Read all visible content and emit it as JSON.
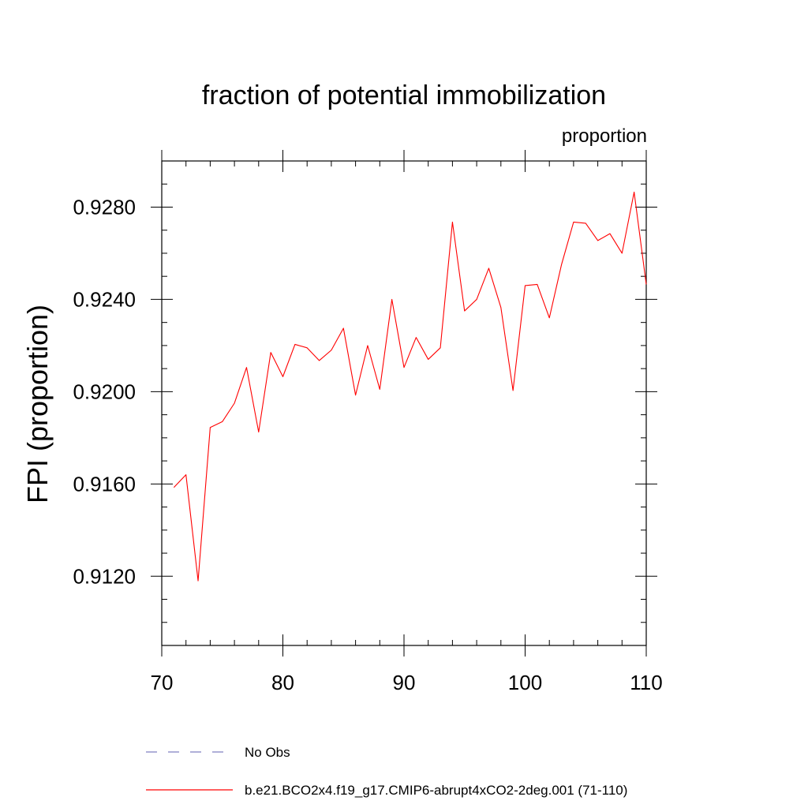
{
  "chart_data": {
    "type": "line",
    "title": "fraction of potential immobilization",
    "units_label": "proportion",
    "ylabel": "FPI  (proportion)",
    "xlabel": "",
    "xlim": [
      70,
      110
    ],
    "ylim": [
      0.909,
      0.93
    ],
    "x_ticks": [
      70,
      80,
      90,
      100,
      110
    ],
    "x_tick_labels": [
      "70",
      "80",
      "90",
      "100",
      "110"
    ],
    "y_ticks": [
      0.912,
      0.916,
      0.92,
      0.924,
      0.928
    ],
    "y_tick_labels": [
      "0.9120",
      "0.9160",
      "0.9200",
      "0.9240",
      "0.9280"
    ],
    "grid": false,
    "legend": {
      "placement": "bottom-left",
      "entries": [
        {
          "label": "No Obs",
          "style": "dashed",
          "color": "#8080c0"
        },
        {
          "label": "b.e21.BCO2x4.f19_g17.CMIP6-abrupt4xCO2-2deg.001 (71-110)",
          "style": "solid",
          "color": "#ff0000"
        }
      ]
    },
    "series": [
      {
        "name": "b.e21.BCO2x4.f19_g17.CMIP6-abrupt4xCO2-2deg.001 (71-110)",
        "color": "#ff0000",
        "x": [
          71,
          72,
          73,
          74,
          75,
          76,
          77,
          78,
          79,
          80,
          81,
          82,
          83,
          84,
          85,
          86,
          87,
          88,
          89,
          90,
          91,
          92,
          93,
          94,
          95,
          96,
          97,
          98,
          99,
          100,
          101,
          102,
          103,
          104,
          105,
          106,
          107,
          108,
          109,
          110
        ],
        "values": [
          0.91585,
          0.9164,
          0.9118,
          0.91845,
          0.9187,
          0.9195,
          0.92105,
          0.91825,
          0.9217,
          0.92065,
          0.92205,
          0.9219,
          0.92135,
          0.9218,
          0.92275,
          0.91985,
          0.922,
          0.9201,
          0.924,
          0.92105,
          0.92235,
          0.9214,
          0.9219,
          0.92735,
          0.9235,
          0.924,
          0.92535,
          0.92365,
          0.92005,
          0.9246,
          0.92465,
          0.9232,
          0.9255,
          0.92735,
          0.9273,
          0.92655,
          0.92685,
          0.926,
          0.92865,
          0.92465
        ]
      }
    ]
  }
}
